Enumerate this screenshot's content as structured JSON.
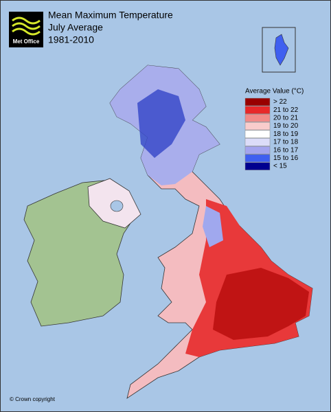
{
  "header": {
    "logo": "Met Office",
    "title": [
      "Mean Maximum Temperature",
      "July Average",
      "1981-2010"
    ]
  },
  "legend": {
    "title": "Average Value (°C)",
    "items": [
      {
        "label": "> 22",
        "color": "#990000"
      },
      {
        "label": "21 to 22",
        "color": "#e8282a"
      },
      {
        "label": "20 to 21",
        "color": "#f28a88"
      },
      {
        "label": "19 to 20",
        "color": "#f9cccc"
      },
      {
        "label": "18 to 19",
        "color": "#ffffff"
      },
      {
        "label": "17 to 18",
        "color": "#dcdcf8"
      },
      {
        "label": "16 to 17",
        "color": "#a4a4ee"
      },
      {
        "label": "15 to 16",
        "color": "#3f5ff0"
      },
      {
        "label": "< 15",
        "color": "#00008f"
      }
    ]
  },
  "footer": "© Crown copyright"
}
